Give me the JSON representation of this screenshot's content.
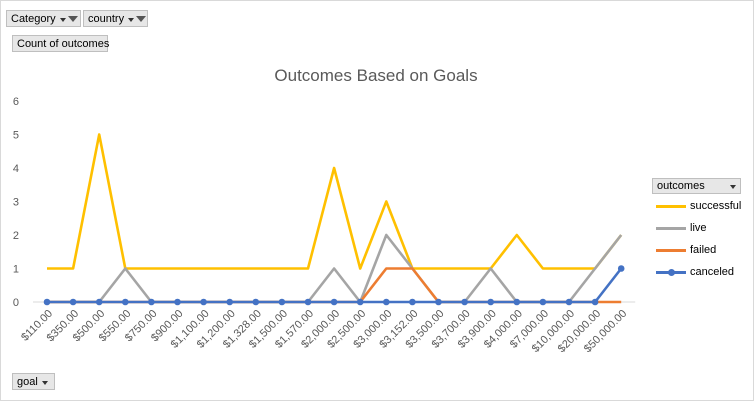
{
  "filters": {
    "category_label": "Category",
    "country_label": "country",
    "values_label": "Count of outcomes",
    "axis_field_label": "goal"
  },
  "legend": {
    "title": "outcomes"
  },
  "chart_data": {
    "type": "line",
    "title": "Outcomes Based on Goals",
    "xlabel": "",
    "ylabel": "",
    "ylim": [
      0,
      6
    ],
    "yticks": [
      0,
      1,
      2,
      3,
      4,
      5,
      6
    ],
    "grid": false,
    "legend_position": "right",
    "categories": [
      "$110.00",
      "$350.00",
      "$500.00",
      "$550.00",
      "$750.00",
      "$900.00",
      "$1,100.00",
      "$1,200.00",
      "$1,328.00",
      "$1,500.00",
      "$1,570.00",
      "$2,000.00",
      "$2,500.00",
      "$3,000.00",
      "$3,152.00",
      "$3,500.00",
      "$3,700.00",
      "$3,900.00",
      "$4,000.00",
      "$7,000.00",
      "$10,000.00",
      "$20,000.00",
      "$50,000.00"
    ],
    "series": [
      {
        "name": "successful",
        "color": "#ffc000",
        "values": [
          1,
          1,
          5,
          1,
          1,
          1,
          1,
          1,
          1,
          1,
          1,
          4,
          1,
          3,
          1,
          1,
          1,
          1,
          2,
          1,
          1,
          1,
          2
        ]
      },
      {
        "name": "live",
        "color": "#a5a5a5",
        "values": [
          0,
          0,
          0,
          1,
          0,
          0,
          0,
          0,
          0,
          0,
          0,
          1,
          0,
          2,
          1,
          0,
          0,
          1,
          0,
          0,
          0,
          1,
          2
        ]
      },
      {
        "name": "failed",
        "color": "#ed7d31",
        "values": [
          0,
          0,
          0,
          0,
          0,
          0,
          0,
          0,
          0,
          0,
          0,
          0,
          0,
          1,
          1,
          0,
          0,
          0,
          0,
          0,
          0,
          0,
          0
        ]
      },
      {
        "name": "canceled",
        "color": "#4472c4",
        "values": [
          0,
          0,
          0,
          0,
          0,
          0,
          0,
          0,
          0,
          0,
          0,
          0,
          0,
          0,
          0,
          0,
          0,
          0,
          0,
          0,
          0,
          0,
          1
        ]
      }
    ]
  }
}
